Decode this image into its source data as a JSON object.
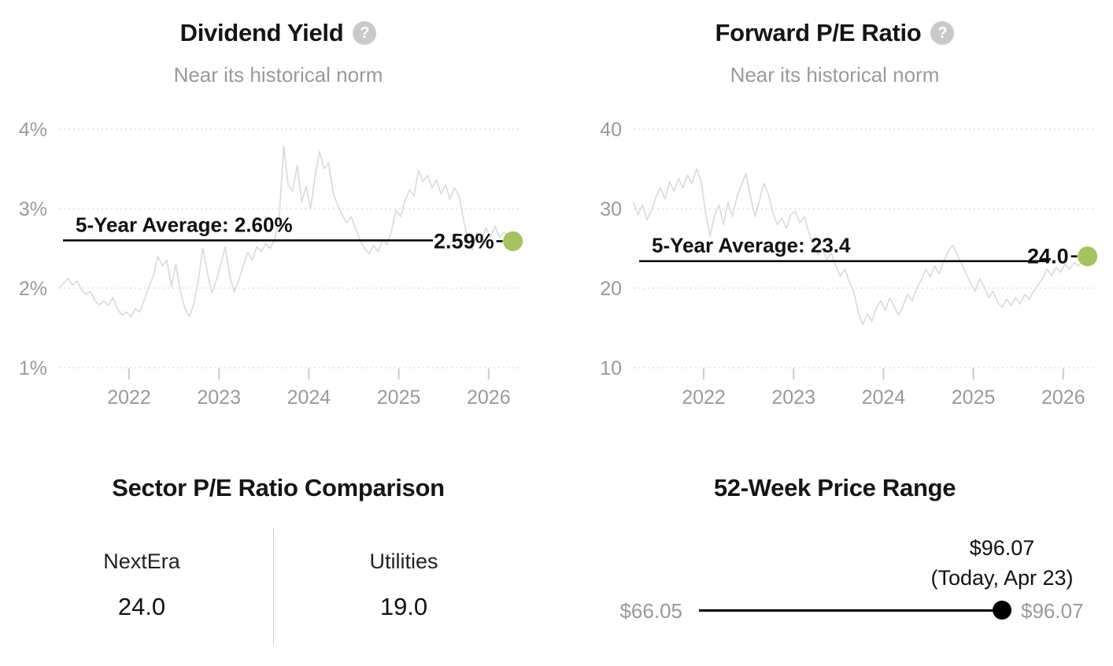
{
  "colors": {
    "background": "#ffffff",
    "series_line": "#d9d9d9",
    "average_line": "#000000",
    "current_dot": "#a6c15f",
    "muted_text": "#9a9a9a",
    "title_text": "#151515",
    "help_icon_bg": "#c9c9c9",
    "gridline": "#cccccc",
    "price_dot": "#000000"
  },
  "left_chart": {
    "title": "Dividend Yield",
    "subtitle": "Near its historical norm",
    "help_glyph": "?"
  },
  "right_chart": {
    "title": "Forward P/E Ratio",
    "subtitle": "Near its historical norm",
    "help_glyph": "?"
  },
  "chart_data": [
    {
      "type": "line",
      "title": "Dividend Yield",
      "subtitle": "Near its historical norm",
      "unit": "%",
      "grid": "dotted-horizontal",
      "legend": "none",
      "x_start": 2021.22,
      "x_step": 0.05,
      "x_ticks": [
        "2022",
        "2023",
        "2024",
        "2025",
        "2026"
      ],
      "ylim": [
        1,
        4
      ],
      "y_ticks": [
        {
          "value": 4,
          "label": "4%"
        },
        {
          "value": 3,
          "label": "3%"
        },
        {
          "value": 2,
          "label": "2%"
        },
        {
          "value": 1,
          "label": "1%"
        }
      ],
      "average": {
        "value": 2.6,
        "label": "5-Year Average: 2.60%"
      },
      "current": {
        "value": 2.59,
        "label": "2.59%"
      },
      "values": [
        2.0,
        2.06,
        2.12,
        2.04,
        2.09,
        1.98,
        1.92,
        1.96,
        1.84,
        1.79,
        1.84,
        1.78,
        1.88,
        1.74,
        1.66,
        1.7,
        1.64,
        1.74,
        1.7,
        1.85,
        2.02,
        2.15,
        2.4,
        2.28,
        2.35,
        2.02,
        2.3,
        1.97,
        1.75,
        1.64,
        1.8,
        2.1,
        2.5,
        2.2,
        1.94,
        2.1,
        2.3,
        2.52,
        2.15,
        1.95,
        2.1,
        2.28,
        2.45,
        2.35,
        2.52,
        2.46,
        2.56,
        2.5,
        2.62,
        2.9,
        3.78,
        3.3,
        3.22,
        3.55,
        3.08,
        3.28,
        3.0,
        3.42,
        3.72,
        3.5,
        3.58,
        3.2,
        3.05,
        2.92,
        2.82,
        2.9,
        2.75,
        2.6,
        2.5,
        2.43,
        2.54,
        2.46,
        2.6,
        2.55,
        2.72,
        2.98,
        2.9,
        3.1,
        3.24,
        3.16,
        3.48,
        3.34,
        3.42,
        3.26,
        3.36,
        3.18,
        3.3,
        3.12,
        3.26,
        3.16,
        2.86,
        2.6,
        2.48,
        2.7,
        2.6,
        2.76,
        2.64,
        2.78,
        2.64,
        2.7,
        2.66,
        2.59
      ]
    },
    {
      "type": "line",
      "title": "Forward P/E Ratio",
      "subtitle": "Near its historical norm",
      "unit": "",
      "grid": "dotted-horizontal",
      "legend": "none",
      "x_start": 2021.22,
      "x_step": 0.05,
      "x_ticks": [
        "2022",
        "2023",
        "2024",
        "2025",
        "2026"
      ],
      "ylim": [
        10,
        40
      ],
      "y_ticks": [
        {
          "value": 40,
          "label": "40"
        },
        {
          "value": 30,
          "label": "30"
        },
        {
          "value": 20,
          "label": "20"
        },
        {
          "value": 10,
          "label": "10"
        }
      ],
      "average": {
        "value": 23.4,
        "label": "5-Year Average: 23.4"
      },
      "current": {
        "value": 24.0,
        "label": "24.0"
      },
      "values": [
        30.8,
        29.2,
        30.5,
        28.6,
        29.8,
        31.5,
        32.6,
        31.2,
        33.4,
        32.2,
        33.8,
        32.6,
        34.2,
        33.2,
        35.0,
        33.5,
        29.5,
        26.5,
        29.0,
        30.5,
        28.0,
        30.8,
        29.0,
        31.5,
        33.0,
        34.4,
        31.5,
        29.0,
        31.0,
        33.2,
        31.8,
        29.5,
        28.0,
        28.8,
        27.5,
        29.3,
        29.6,
        28.2,
        29.0,
        27.0,
        25.5,
        24.2,
        25.0,
        23.6,
        24.4,
        22.8,
        21.5,
        22.4,
        20.8,
        19.5,
        17.0,
        15.4,
        16.8,
        15.8,
        17.5,
        18.4,
        17.2,
        18.8,
        17.6,
        16.6,
        17.8,
        19.2,
        18.4,
        20.0,
        21.0,
        22.4,
        21.4,
        22.8,
        21.8,
        23.4,
        24.6,
        25.4,
        24.2,
        23.0,
        21.8,
        20.6,
        19.6,
        21.2,
        20.2,
        18.8,
        19.6,
        18.2,
        17.6,
        18.6,
        17.8,
        18.8,
        18.0,
        19.2,
        18.6,
        19.6,
        20.4,
        21.2,
        22.4,
        21.6,
        22.6,
        22.0,
        23.0,
        22.4,
        23.2,
        22.8,
        23.5,
        24.0
      ]
    }
  ],
  "sector_comparison": {
    "title": "Sector P/E Ratio Comparison",
    "columns": [
      {
        "label": "NextEra",
        "value": "24.0"
      },
      {
        "label": "Utilities",
        "value": "19.0"
      }
    ]
  },
  "price_range": {
    "title": "52-Week Price Range",
    "low_label": "$66.05",
    "high_label": "$96.07",
    "current_price_label": "$96.07",
    "current_date_label": "(Today, Apr 23)"
  }
}
